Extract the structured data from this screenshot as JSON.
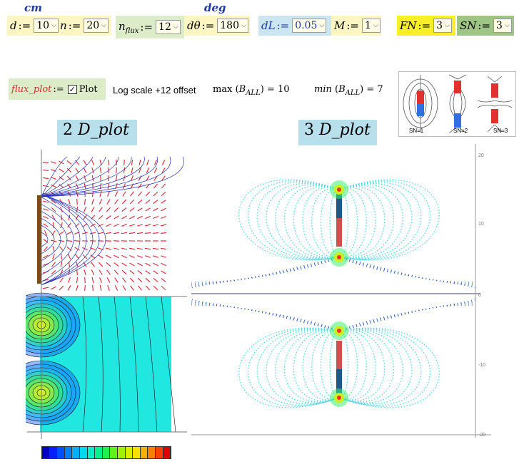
{
  "units": {
    "cm": "cm",
    "deg": "deg"
  },
  "params": {
    "d": {
      "label": "d",
      "value": "10"
    },
    "n": {
      "label": "n",
      "value": "20"
    },
    "nflux": {
      "label": "n",
      "sub": "flux",
      "value": "12"
    },
    "dtheta": {
      "label": "dθ",
      "value": "180"
    },
    "dL": {
      "label": "dL",
      "value": "0.05"
    },
    "M": {
      "label": "M",
      "value": "1"
    },
    "FN": {
      "label": "FN",
      "value": "3"
    },
    "SN": {
      "label": "SN",
      "value": "3"
    }
  },
  "assign_op": ":=",
  "flux_plot": {
    "label": "flux_plot",
    "checkbox_label": "Plot",
    "checked": true
  },
  "log_scale_text": "Log scale +12 offset",
  "max_expr": {
    "fn": "max",
    "var": "B",
    "sub": "ALL",
    "value": "10"
  },
  "min_expr": {
    "fn": "min",
    "var": "B",
    "sub": "ALL",
    "value": "7"
  },
  "legend_labels": [
    "SN=1",
    "SN=2",
    "SN=3"
  ],
  "plot2d_title": {
    "num": "2",
    "name": "D_plot"
  },
  "plot3d_title": {
    "num": "3",
    "name": "D_plot"
  },
  "plot3d_axis_ticks": [
    "20",
    "10",
    "0",
    "-10",
    "-20"
  ],
  "colors": {
    "yellow_region": "#fdf6c3",
    "green_region": "#dcebc8",
    "blue_region": "#cbe6f0",
    "fn_highlight": "#f8ef2a",
    "sn_highlight": "#9fc585",
    "field_line": "#52d6e6",
    "vector_red": "#e02030",
    "vector_blue": "#2030c0"
  },
  "colorbar": [
    "#0000c0",
    "#0020ff",
    "#0050ff",
    "#0080ff",
    "#00b0ff",
    "#00d8f0",
    "#00f0c8",
    "#00f090",
    "#20f050",
    "#60f020",
    "#a0f000",
    "#d8f000",
    "#f8e000",
    "#f8b000",
    "#f88000",
    "#f84000",
    "#e00000"
  ]
}
